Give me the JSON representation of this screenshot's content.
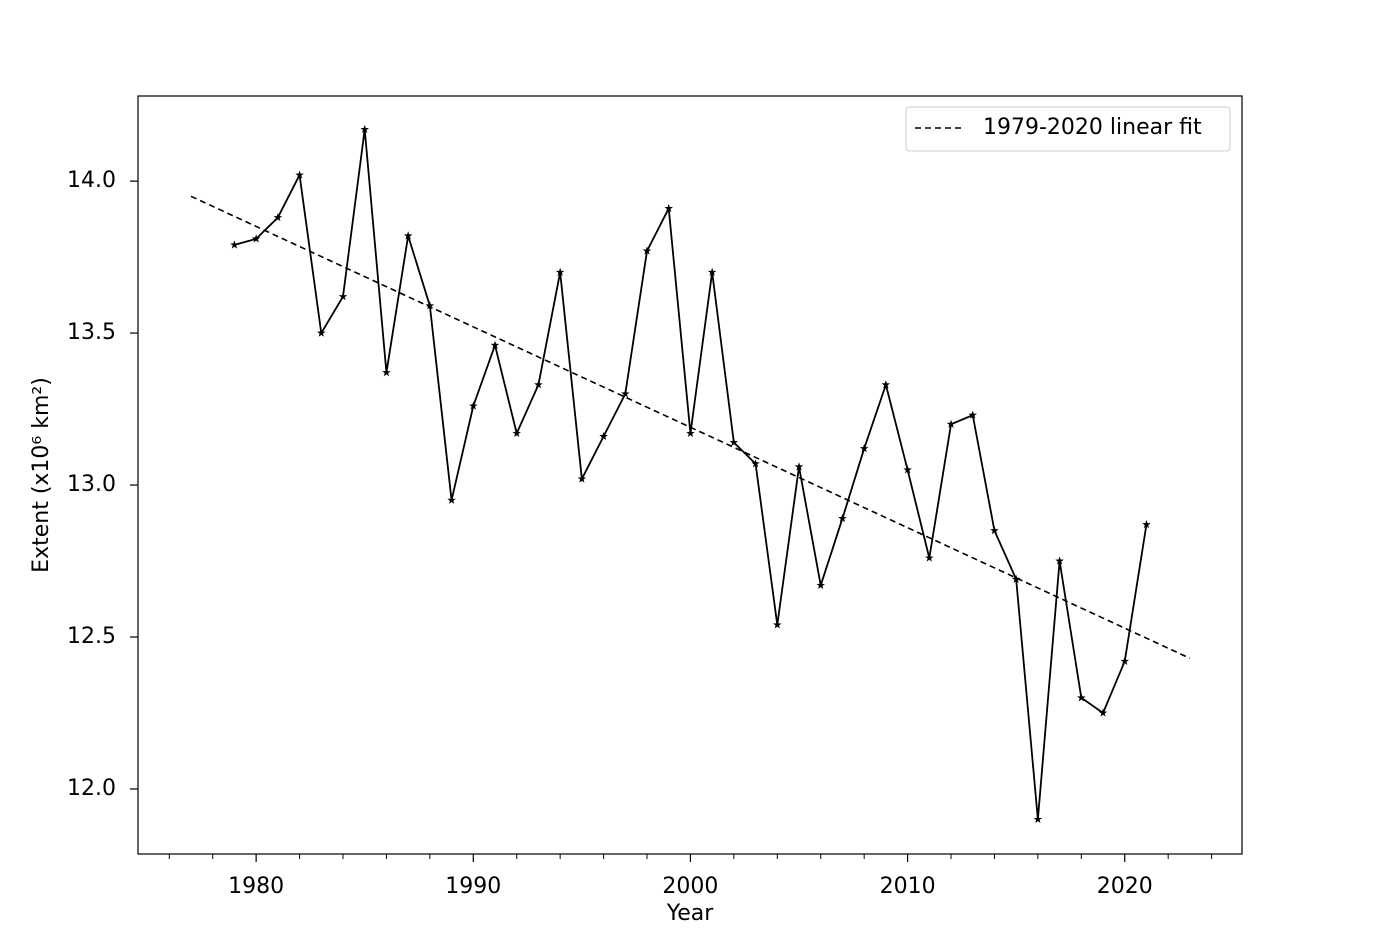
{
  "chart_data": {
    "type": "line",
    "xlabel": "Year",
    "ylabel": "Extent (x10⁶ km²)",
    "x": [
      1979,
      1980,
      1981,
      1982,
      1983,
      1984,
      1985,
      1986,
      1987,
      1988,
      1989,
      1990,
      1991,
      1992,
      1993,
      1994,
      1995,
      1996,
      1997,
      1998,
      1999,
      2000,
      2001,
      2002,
      2003,
      2004,
      2005,
      2006,
      2007,
      2008,
      2009,
      2010,
      2011,
      2012,
      2013,
      2014,
      2015,
      2016,
      2017,
      2018,
      2019,
      2020,
      2021
    ],
    "series": [
      {
        "color": "#000000",
        "marker": "star",
        "values": [
          13.79,
          13.81,
          13.88,
          14.02,
          13.5,
          13.62,
          14.17,
          13.37,
          13.82,
          13.59,
          12.95,
          13.26,
          13.46,
          13.17,
          13.33,
          13.7,
          13.02,
          13.16,
          13.3,
          13.77,
          13.91,
          13.17,
          13.7,
          13.14,
          13.07,
          12.54,
          13.06,
          12.67,
          12.89,
          13.12,
          13.33,
          13.05,
          12.76,
          13.2,
          13.23,
          12.85,
          12.69,
          11.9,
          12.75,
          12.3,
          12.25,
          12.42,
          12.87
        ]
      },
      {
        "name": "1979-2020 linear fit",
        "color": "#000000",
        "dash": "dashed",
        "x": [
          1977,
          2023
        ],
        "values": [
          13.95,
          12.43
        ]
      }
    ],
    "xlim": [
      1974.56,
      2025.4
    ],
    "ylim": [
      11.786,
      14.28
    ],
    "xticks": [
      1980,
      1990,
      2000,
      2010,
      2020
    ],
    "xminorticks": [
      1976,
      1978,
      1982,
      1984,
      1986,
      1988,
      1992,
      1994,
      1996,
      1998,
      2002,
      2004,
      2006,
      2008,
      2012,
      2014,
      2016,
      2018,
      2022,
      2024
    ],
    "yticks": [
      {
        "value": 12,
        "label": "12.0"
      },
      12.5,
      {
        "value": 13,
        "label": "13.0"
      },
      13.5,
      {
        "value": 14,
        "label": "14.0"
      }
    ],
    "legend": "upper right"
  }
}
